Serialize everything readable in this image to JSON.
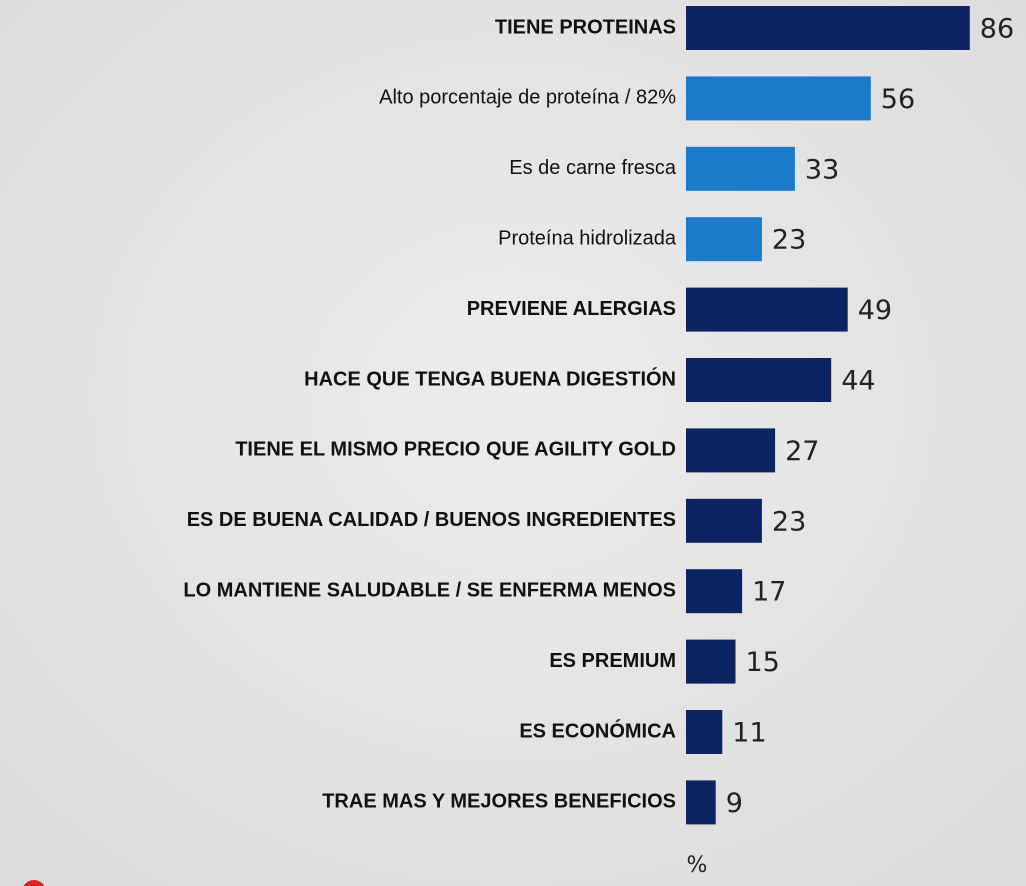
{
  "chart_data": {
    "type": "hbar",
    "categories": [
      "TIENE PROTEINAS",
      "Alto porcentaje de proteína / 82%",
      "Es de carne fresca",
      "Proteína hidrolizada",
      "PREVIENE ALERGIAS",
      "HACE QUE TENGA BUENA DIGESTIÓN",
      "TIENE EL MISMO PRECIO QUE AGILITY GOLD",
      "ES DE BUENA CALIDAD / BUENOS INGREDIENTES",
      "LO MANTIENE SALUDABLE / SE ENFERMA MENOS",
      "ES PREMIUM",
      "ES ECONÓMICA",
      "TRAE MAS Y MEJORES BENEFICIOS"
    ],
    "values": [
      86,
      56,
      33,
      23,
      49,
      44,
      27,
      23,
      17,
      15,
      11,
      9
    ],
    "colors": [
      "#0c2461",
      "#1c7acb",
      "#1c7acb",
      "#1c7acb",
      "#0c2461",
      "#0c2461",
      "#0c2461",
      "#0c2461",
      "#0c2461",
      "#0c2461",
      "#0c2461",
      "#0c2461"
    ],
    "x_label": "%"
  }
}
